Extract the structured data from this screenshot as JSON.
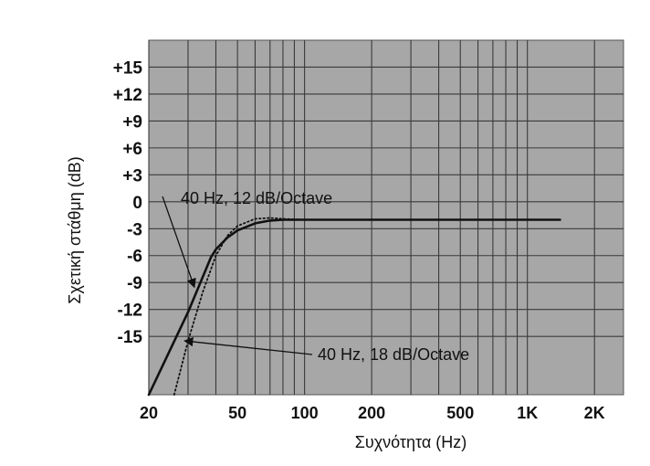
{
  "chart_data": {
    "type": "line",
    "xlabel": "Συχνότητα (Hz)",
    "ylabel": "Σχετική στάθμη (dB)",
    "x_scale": "log",
    "xlim": [
      20,
      2700
    ],
    "ylim": [
      -21.5,
      18
    ],
    "x_ticks": [
      20,
      50,
      100,
      200,
      500,
      1000,
      2000
    ],
    "x_tick_labels": [
      "20",
      "50",
      "100",
      "200",
      "500",
      "1K",
      "2K"
    ],
    "y_ticks": [
      15,
      12,
      9,
      6,
      3,
      0,
      -3,
      -6,
      -9,
      -12,
      -15
    ],
    "y_tick_labels": [
      "+15",
      "+12",
      "+9",
      "+6",
      "+3",
      "0",
      "-3",
      "-6",
      "-9",
      "-12",
      "-15"
    ],
    "x_gridlines": [
      20,
      30,
      40,
      50,
      60,
      70,
      80,
      90,
      100,
      200,
      300,
      400,
      500,
      600,
      700,
      800,
      900,
      1000,
      2000
    ],
    "y_gridlines": [
      15,
      12,
      9,
      6,
      3,
      0,
      -3,
      -6,
      -9,
      -12,
      -15
    ],
    "grid": true,
    "colors": {
      "plot_background": "#a7a7a7",
      "grid": "#3a3a3a",
      "curve": "#111111"
    },
    "series": [
      {
        "style": "solid",
        "x": [
          20,
          30,
          38,
          40,
          45,
          50,
          60,
          70,
          80,
          100,
          200,
          500,
          1000,
          1400
        ],
        "y": [
          -21.5,
          -12.3,
          -6.2,
          -5.3,
          -4.0,
          -3.2,
          -2.4,
          -2.1,
          -2.0,
          -2.0,
          -2.0,
          -2.0,
          -2.0,
          -2.0
        ]
      },
      {
        "style": "dotted",
        "x": [
          26,
          30,
          35,
          40,
          45,
          50,
          60,
          70,
          80,
          100
        ],
        "y": [
          -21.5,
          -15.5,
          -10.0,
          -6.0,
          -3.8,
          -2.7,
          -1.9,
          -1.8,
          -1.9,
          -2.0
        ]
      }
    ],
    "annotations": [
      {
        "text": "40 Hz, 12 dB/Octave",
        "target": {
          "x": 32,
          "y": -9.5
        }
      },
      {
        "text": "40 Hz, 18 dB/Octave",
        "target": {
          "x": 29,
          "y": -15.5
        }
      }
    ]
  }
}
